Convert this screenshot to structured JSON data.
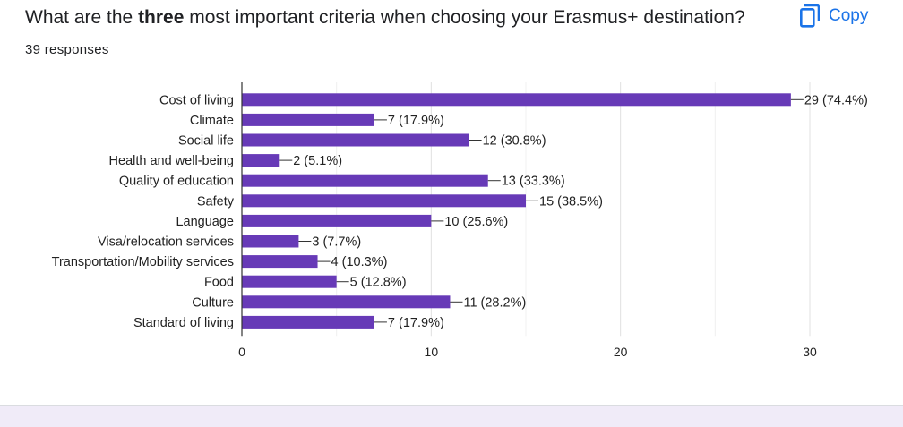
{
  "question": {
    "prefix": "What are the ",
    "emphasis": "three",
    "suffix": " most important criteria when choosing your Erasmus+ destination?"
  },
  "copy_button": {
    "label": "Copy",
    "icon": "copy-icon"
  },
  "responses_text": "39 responses",
  "colors": {
    "bar": "#673ab7",
    "accent": "#1a73e8",
    "grid": "#e0e0e0",
    "axis": "#333333"
  },
  "chart_data": {
    "type": "bar",
    "orientation": "horizontal",
    "categories": [
      "Cost of living",
      "Climate",
      "Social life",
      "Health and well-being",
      "Quality of education",
      "Safety",
      "Language",
      "Visa/relocation services",
      "Transportation/Mobility services",
      "Food",
      "Culture",
      "Standard of living"
    ],
    "values": [
      29,
      7,
      12,
      2,
      13,
      15,
      10,
      3,
      4,
      5,
      11,
      7
    ],
    "data_labels": [
      "29 (74.4%)",
      "7 (17.9%)",
      "12 (30.8%)",
      "2 (5.1%)",
      "13 (33.3%)",
      "15 (38.5%)",
      "10 (25.6%)",
      "3 (7.7%)",
      "4 (10.3%)",
      "5 (12.8%)",
      "11 (28.2%)",
      "7 (17.9%)"
    ],
    "xlim": [
      0,
      30
    ],
    "xticks": [
      0,
      10,
      20,
      30
    ],
    "grid": true
  }
}
